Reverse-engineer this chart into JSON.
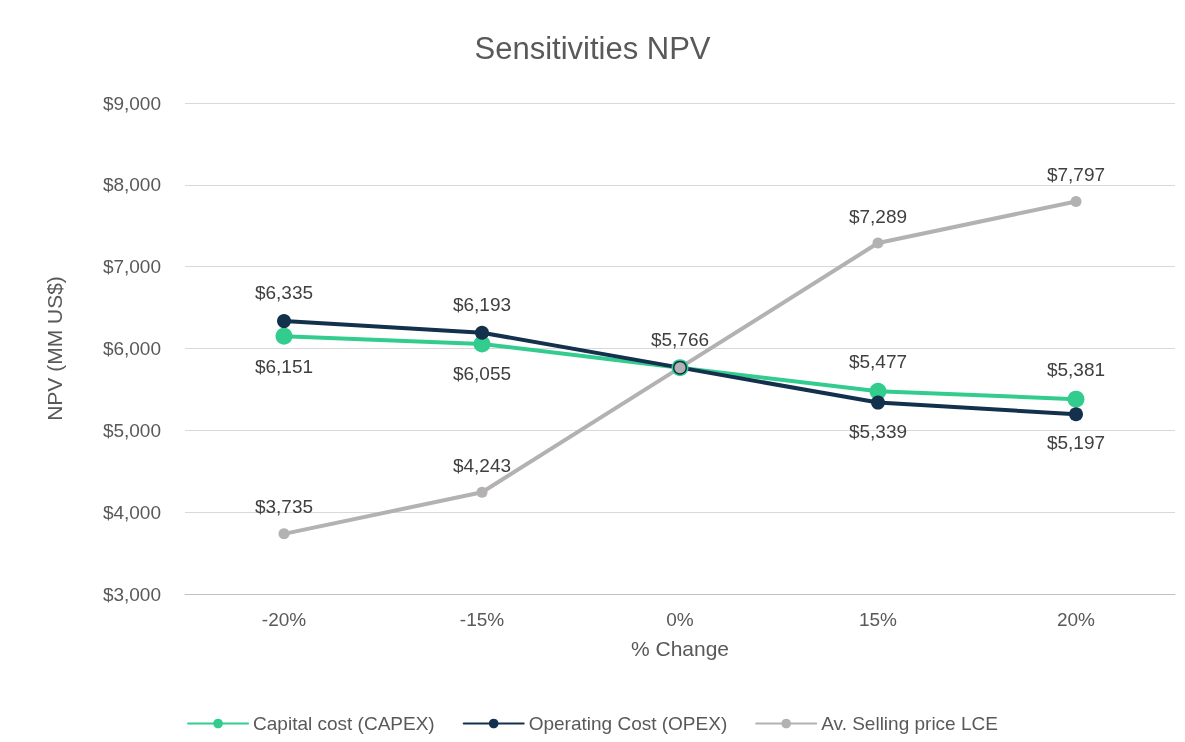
{
  "chart_data": {
    "type": "line",
    "title": "Sensitivities NPV",
    "xlabel": "% Change",
    "ylabel": "NPV (MM US$)",
    "categories": [
      "-20%",
      "-15%",
      "0%",
      "15%",
      "20%"
    ],
    "series": [
      {
        "name": "Capital cost (CAPEX)",
        "color": "#33cc8f",
        "values": [
          6151,
          6055,
          5766,
          5477,
          5381
        ],
        "value_labels": [
          "$6,151",
          "$6,055",
          null,
          "$5,477",
          "$5,381"
        ]
      },
      {
        "name": "Operating Cost (OPEX)",
        "color": "#13304d",
        "values": [
          6335,
          6193,
          5766,
          5339,
          5197
        ],
        "value_labels": [
          "$6,335",
          "$6,193",
          "$5,766",
          "$5,339",
          "$5,197"
        ]
      },
      {
        "name": "Av. Selling price LCE",
        "color": "#b3b1b1",
        "values": [
          3735,
          4243,
          5766,
          7289,
          7797
        ],
        "value_labels": [
          "$3,735",
          "$4,243",
          null,
          "$7,289",
          "$7,797"
        ]
      }
    ],
    "ylim": [
      3000,
      9000
    ],
    "yticks": [
      {
        "value": 3000,
        "label": "$3,000"
      },
      {
        "value": 4000,
        "label": "$4,000"
      },
      {
        "value": 5000,
        "label": "$5,000"
      },
      {
        "value": 6000,
        "label": "$6,000"
      },
      {
        "value": 7000,
        "label": "$7,000"
      },
      {
        "value": 8000,
        "label": "$8,000"
      },
      {
        "value": 9000,
        "label": "$9,000"
      }
    ],
    "grid": "y",
    "legend": "bottom",
    "marker": "circle",
    "line_style": "solid"
  }
}
